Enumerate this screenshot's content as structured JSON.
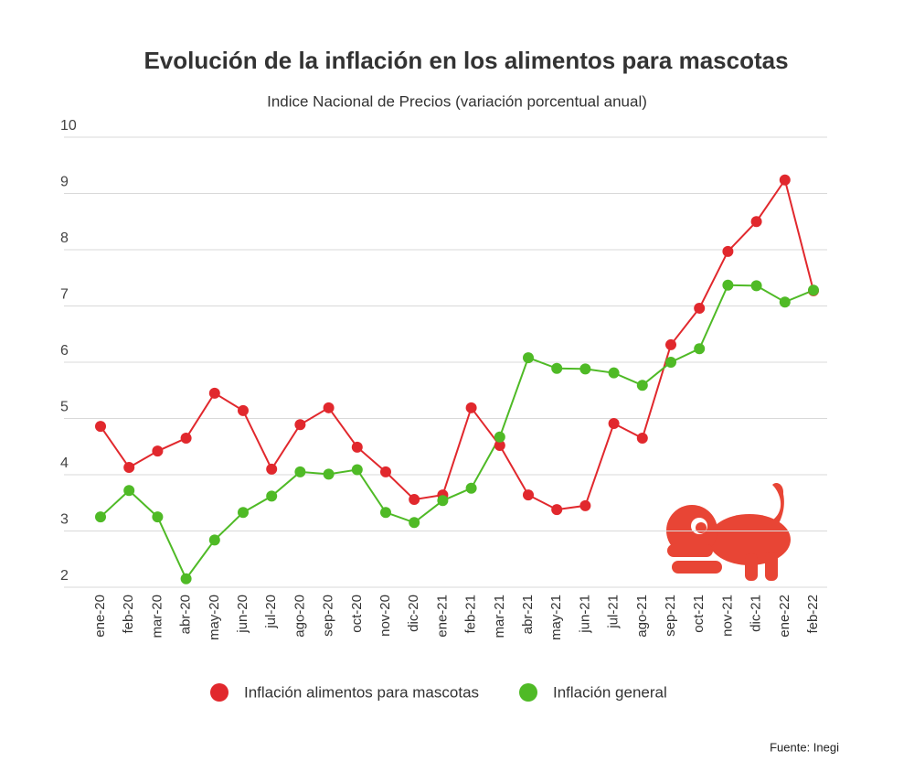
{
  "chart_data": {
    "type": "line",
    "title": "Evolución de la inflación en los alimentos para mascotas",
    "subtitle": "Indice Nacional de Precios (variación porcentual anual)",
    "source": "Fuente: Inegi",
    "categories": [
      "ene-20",
      "feb-20",
      "mar-20",
      "abr-20",
      "may-20",
      "jun-20",
      "jul-20",
      "ago-20",
      "sep-20",
      "oct-20",
      "nov-20",
      "dic-20",
      "ene-21",
      "feb-21",
      "mar-21",
      "abr-21",
      "may-21",
      "jun-21",
      "jul-21",
      "ago-21",
      "sep-21",
      "oct-21",
      "nov-21",
      "dic-21",
      "ene-22",
      "feb-22"
    ],
    "series": [
      {
        "name": "Inflación alimentos para mascotas",
        "color": "#e1282d",
        "values": [
          4.86,
          4.13,
          4.42,
          4.65,
          5.45,
          5.14,
          4.1,
          4.89,
          5.19,
          4.49,
          4.05,
          3.56,
          3.64,
          5.19,
          4.52,
          3.64,
          3.38,
          3.45,
          4.91,
          4.65,
          6.31,
          6.96,
          7.97,
          8.5,
          9.24,
          7.27
        ]
      },
      {
        "name": "Inflación general",
        "color": "#4fba26",
        "values": [
          3.25,
          3.72,
          3.25,
          2.15,
          2.84,
          3.33,
          3.62,
          4.05,
          4.01,
          4.09,
          3.33,
          3.15,
          3.54,
          3.76,
          4.67,
          6.08,
          5.89,
          5.88,
          5.81,
          5.59,
          6.0,
          6.24,
          7.37,
          7.36,
          7.07,
          7.28
        ]
      }
    ],
    "ylim": [
      2,
      10
    ],
    "yticks": [
      2,
      3,
      4,
      5,
      6,
      7,
      8,
      9,
      10
    ],
    "grid": true
  }
}
